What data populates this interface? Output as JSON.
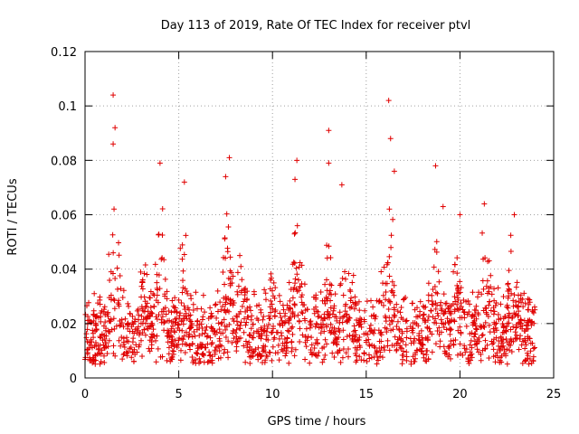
{
  "chart_data": {
    "type": "scatter",
    "title": "Day 113 of 2019, Rate Of TEC Index for receiver ptvl",
    "xlabel": "GPS time / hours",
    "ylabel": "ROTI / TECUs",
    "xlim": [
      0,
      25
    ],
    "ylim": [
      0,
      0.12
    ],
    "xticks": [
      "0",
      "5",
      "10",
      "15",
      "20",
      "25"
    ],
    "yticks": [
      "0",
      "0.02",
      "0.04",
      "0.06",
      "0.08",
      "0.1",
      "0.12"
    ],
    "grid": true,
    "marker": "plus",
    "series_color": "#e00000",
    "gap_hours": [
      17.2,
      17.35
    ],
    "baseline_range": [
      0.005,
      0.03
    ],
    "activity_peaks": [
      {
        "x": 1.5,
        "y": 0.104
      },
      {
        "x": 1.6,
        "y": 0.092
      },
      {
        "x": 1.5,
        "y": 0.086
      },
      {
        "x": 4.0,
        "y": 0.079
      },
      {
        "x": 5.3,
        "y": 0.072
      },
      {
        "x": 7.7,
        "y": 0.081
      },
      {
        "x": 7.5,
        "y": 0.074
      },
      {
        "x": 11.3,
        "y": 0.08
      },
      {
        "x": 11.2,
        "y": 0.073
      },
      {
        "x": 13.0,
        "y": 0.091
      },
      {
        "x": 13.0,
        "y": 0.079
      },
      {
        "x": 13.7,
        "y": 0.071
      },
      {
        "x": 16.2,
        "y": 0.102
      },
      {
        "x": 16.3,
        "y": 0.088
      },
      {
        "x": 16.5,
        "y": 0.076
      },
      {
        "x": 18.7,
        "y": 0.078
      },
      {
        "x": 19.1,
        "y": 0.063
      },
      {
        "x": 20.0,
        "y": 0.06
      },
      {
        "x": 21.3,
        "y": 0.064
      },
      {
        "x": 22.9,
        "y": 0.06
      }
    ],
    "bursts": [
      {
        "x": 1.6,
        "amp": 0.045
      },
      {
        "x": 3.2,
        "amp": 0.022
      },
      {
        "x": 4.0,
        "amp": 0.04
      },
      {
        "x": 5.3,
        "amp": 0.03
      },
      {
        "x": 7.6,
        "amp": 0.042
      },
      {
        "x": 8.4,
        "amp": 0.022
      },
      {
        "x": 10.0,
        "amp": 0.02
      },
      {
        "x": 11.3,
        "amp": 0.04
      },
      {
        "x": 12.9,
        "amp": 0.032
      },
      {
        "x": 14.1,
        "amp": 0.025
      },
      {
        "x": 16.2,
        "amp": 0.045
      },
      {
        "x": 18.7,
        "amp": 0.04
      },
      {
        "x": 19.8,
        "amp": 0.03
      },
      {
        "x": 21.3,
        "amp": 0.032
      },
      {
        "x": 22.8,
        "amp": 0.028
      }
    ]
  }
}
